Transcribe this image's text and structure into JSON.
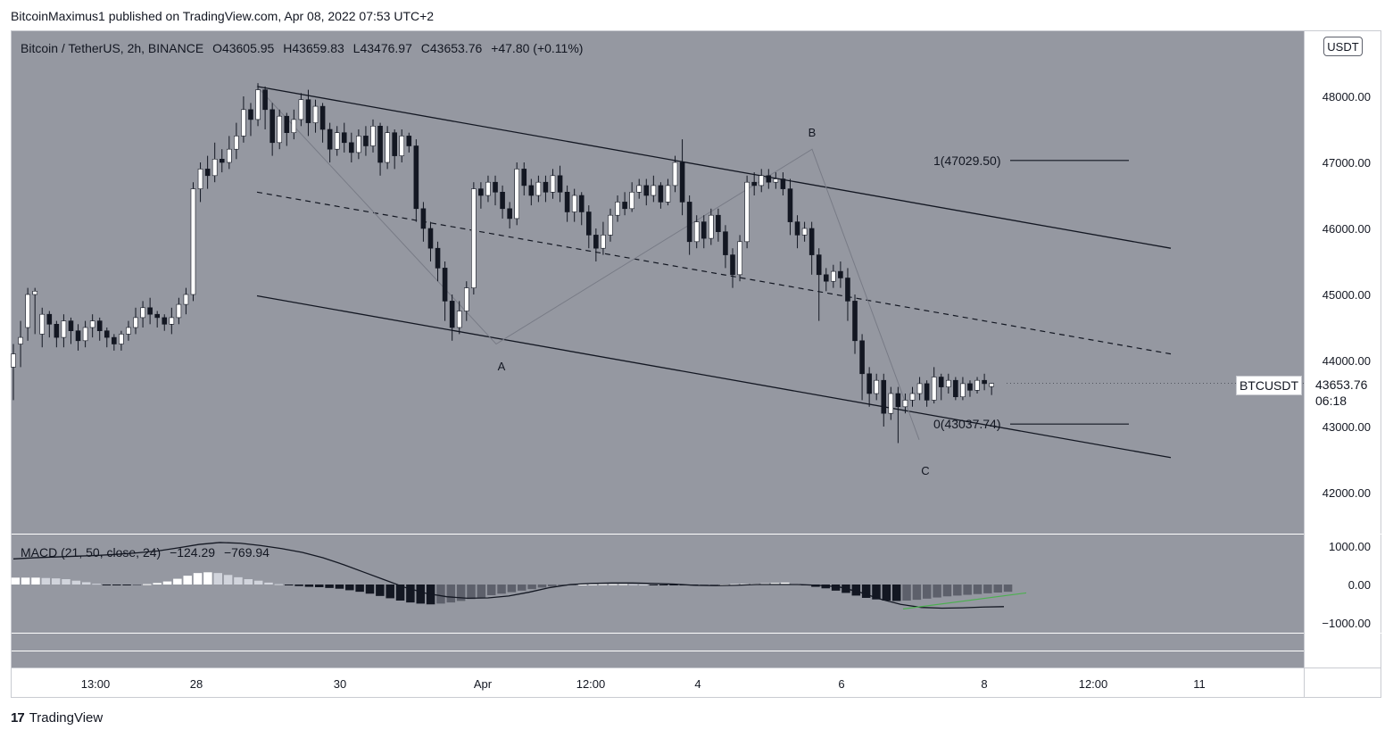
{
  "header": {
    "published": "BitcoinMaximus1 published on TradingView.com, Apr 08, 2022 07:53 UTC+2"
  },
  "legend": {
    "symbol": "Bitcoin / TetherUS, 2h, BINANCE",
    "o_label": "O",
    "o": "43605.95",
    "h_label": "H",
    "h": "43659.83",
    "l_label": "L",
    "l": "43476.97",
    "c_label": "C",
    "c": "43653.76",
    "change": "+47.80 (+0.11%)"
  },
  "macd_legend": {
    "name": "MACD (21, 50, close, 24)",
    "v1": "−124.29",
    "v2": "−769.94"
  },
  "currency_badge": "USDT",
  "symbol_tag": "BTCUSDT",
  "last_price": "43653.76",
  "countdown": "06:18",
  "footer": {
    "logo": "17",
    "brand": "TradingView"
  },
  "colors": {
    "plot_bg": "#9598a1",
    "up": "#ffffff",
    "down": "#131722",
    "line": "#131722",
    "macd_trend": "#4caf50"
  },
  "chart_data": {
    "type": "candlestick",
    "interval": "2h",
    "y_axis": {
      "labels": [
        "48000.00",
        "47000.00",
        "46000.00",
        "45000.00",
        "44000.00",
        "43000.00",
        "42000.00"
      ],
      "range": [
        41300,
        48800
      ]
    },
    "macd_axis": {
      "labels": [
        "1000.00",
        "0.00",
        "−1000.00"
      ],
      "range": [
        -1300,
        1300
      ]
    },
    "x_axis": {
      "labels": [
        "13:00",
        "28",
        "30",
        "Apr",
        "12:00",
        "4",
        "6",
        "8",
        "12:00",
        "11"
      ]
    },
    "wave_labels": [
      {
        "label": "A",
        "value": 44150
      },
      {
        "label": "B",
        "value": 47200
      },
      {
        "label": "C",
        "value": 42650
      }
    ],
    "fib_levels": [
      {
        "label": "1(47029.50)",
        "value": 47029.5
      },
      {
        "label": "0(43037.74)",
        "value": 43037.74
      }
    ],
    "channel": {
      "upper": {
        "start": 48150,
        "end": 45700
      },
      "middle": {
        "start": 46550,
        "end": 44100
      },
      "lower": {
        "start": 44980,
        "end": 42530
      }
    },
    "candles": [
      [
        43900,
        44100,
        43400,
        44250
      ],
      [
        44250,
        44350,
        43900,
        44600
      ],
      [
        44500,
        45000,
        44300,
        45100
      ],
      [
        45000,
        45050,
        44400,
        45100
      ],
      [
        44400,
        44700,
        44200,
        44800
      ],
      [
        44700,
        44550,
        44350,
        44750
      ],
      [
        44550,
        44350,
        44200,
        44600
      ],
      [
        44350,
        44600,
        44200,
        44700
      ],
      [
        44600,
        44450,
        44250,
        44650
      ],
      [
        44450,
        44300,
        44150,
        44550
      ],
      [
        44300,
        44500,
        44200,
        44600
      ],
      [
        44500,
        44600,
        44350,
        44700
      ],
      [
        44600,
        44450,
        44300,
        44650
      ],
      [
        44450,
        44350,
        44200,
        44500
      ],
      [
        44350,
        44250,
        44150,
        44400
      ],
      [
        44250,
        44400,
        44150,
        44450
      ],
      [
        44400,
        44500,
        44300,
        44600
      ],
      [
        44500,
        44650,
        44400,
        44800
      ],
      [
        44650,
        44800,
        44500,
        44900
      ],
      [
        44800,
        44700,
        44550,
        44950
      ],
      [
        44700,
        44650,
        44500,
        44750
      ],
      [
        44650,
        44550,
        44450,
        44700
      ],
      [
        44550,
        44650,
        44400,
        44800
      ],
      [
        44650,
        44850,
        44550,
        44950
      ],
      [
        44850,
        45000,
        44700,
        45100
      ],
      [
        45000,
        46600,
        44900,
        46700
      ],
      [
        46600,
        46900,
        46400,
        47000
      ],
      [
        46900,
        46800,
        46600,
        47100
      ],
      [
        46800,
        47050,
        46700,
        47300
      ],
      [
        47050,
        47000,
        46850,
        47200
      ],
      [
        47000,
        47200,
        46900,
        47400
      ],
      [
        47200,
        47400,
        47050,
        47600
      ],
      [
        47400,
        47800,
        47300,
        48000
      ],
      [
        47800,
        47650,
        47400,
        47900
      ],
      [
        47650,
        48100,
        47550,
        48200
      ],
      [
        48100,
        47800,
        47500,
        48150
      ],
      [
        47800,
        47300,
        47100,
        47900
      ],
      [
        47300,
        47700,
        47200,
        47800
      ],
      [
        47700,
        47450,
        47250,
        47750
      ],
      [
        47450,
        47650,
        47350,
        47800
      ],
      [
        47650,
        47950,
        47550,
        48050
      ],
      [
        47950,
        47600,
        47400,
        48100
      ],
      [
        47600,
        47850,
        47450,
        47950
      ],
      [
        47850,
        47500,
        47300,
        47900
      ],
      [
        47500,
        47200,
        47000,
        47600
      ],
      [
        47200,
        47450,
        47100,
        47550
      ],
      [
        47450,
        47300,
        47150,
        47600
      ],
      [
        47300,
        47150,
        47000,
        47450
      ],
      [
        47150,
        47400,
        47050,
        47500
      ],
      [
        47400,
        47250,
        47100,
        47550
      ],
      [
        47250,
        47550,
        47150,
        47650
      ],
      [
        47550,
        47000,
        46800,
        47600
      ],
      [
        47000,
        47450,
        46900,
        47550
      ],
      [
        47450,
        47100,
        46900,
        47500
      ],
      [
        47100,
        47400,
        47000,
        47500
      ],
      [
        47400,
        47250,
        47150,
        47450
      ],
      [
        47250,
        46300,
        46100,
        47350
      ],
      [
        46300,
        46000,
        45800,
        46400
      ],
      [
        46000,
        45700,
        45500,
        46100
      ],
      [
        45700,
        45400,
        45200,
        45800
      ],
      [
        45400,
        44900,
        44600,
        45500
      ],
      [
        44900,
        44500,
        44300,
        45000
      ],
      [
        44500,
        44750,
        44400,
        44900
      ],
      [
        44750,
        45100,
        44600,
        45200
      ],
      [
        45100,
        46600,
        45000,
        46700
      ],
      [
        46600,
        46500,
        46300,
        46700
      ],
      [
        46500,
        46700,
        46400,
        46800
      ],
      [
        46700,
        46550,
        46350,
        46800
      ],
      [
        46550,
        46300,
        46150,
        46650
      ],
      [
        46300,
        46150,
        46000,
        46400
      ],
      [
        46150,
        46900,
        46050,
        47000
      ],
      [
        46900,
        46650,
        46500,
        47000
      ],
      [
        46650,
        46500,
        46350,
        46750
      ],
      [
        46500,
        46700,
        46400,
        46800
      ],
      [
        46700,
        46550,
        46400,
        46800
      ],
      [
        46550,
        46800,
        46450,
        46900
      ],
      [
        46800,
        46550,
        46400,
        46950
      ],
      [
        46550,
        46250,
        46100,
        46650
      ],
      [
        46250,
        46500,
        46100,
        46600
      ],
      [
        46500,
        46250,
        46050,
        46550
      ],
      [
        46250,
        45900,
        45700,
        46350
      ],
      [
        45900,
        45700,
        45500,
        46000
      ],
      [
        45700,
        45900,
        45600,
        46100
      ],
      [
        45900,
        46200,
        45800,
        46300
      ],
      [
        46200,
        46400,
        46100,
        46500
      ],
      [
        46400,
        46300,
        46200,
        46550
      ],
      [
        46300,
        46550,
        46250,
        46700
      ],
      [
        46550,
        46650,
        46450,
        46750
      ],
      [
        46650,
        46500,
        46350,
        46750
      ],
      [
        46500,
        46650,
        46400,
        46800
      ],
      [
        46650,
        46400,
        46300,
        46700
      ],
      [
        46400,
        46650,
        46350,
        46750
      ],
      [
        46650,
        47000,
        46550,
        47100
      ],
      [
        47000,
        46400,
        46200,
        47350
      ],
      [
        46400,
        45800,
        45600,
        46500
      ],
      [
        45800,
        46100,
        45700,
        46200
      ],
      [
        46100,
        45850,
        45700,
        46200
      ],
      [
        45850,
        46200,
        45750,
        46300
      ],
      [
        46200,
        45950,
        45800,
        46300
      ],
      [
        45950,
        45600,
        45400,
        46050
      ],
      [
        45600,
        45300,
        45100,
        45700
      ],
      [
        45300,
        45800,
        45200,
        45900
      ],
      [
        45800,
        46700,
        45700,
        46800
      ],
      [
        46700,
        46650,
        46500,
        46850
      ],
      [
        46650,
        46800,
        46550,
        46900
      ],
      [
        46800,
        46700,
        46600,
        46900
      ],
      [
        46700,
        46750,
        46600,
        46850
      ],
      [
        46750,
        46600,
        46500,
        46850
      ],
      [
        46600,
        46100,
        45900,
        46750
      ],
      [
        46100,
        45900,
        45700,
        46200
      ],
      [
        45900,
        46000,
        45800,
        46100
      ],
      [
        46000,
        45600,
        45300,
        46100
      ],
      [
        45600,
        45300,
        44600,
        45700
      ],
      [
        45300,
        45200,
        45050,
        45400
      ],
      [
        45200,
        45350,
        45100,
        45450
      ],
      [
        45350,
        45250,
        45100,
        45500
      ],
      [
        45250,
        44900,
        44600,
        45400
      ],
      [
        44900,
        44300,
        44100,
        45000
      ],
      [
        44300,
        43800,
        43400,
        44400
      ],
      [
        43800,
        43500,
        43300,
        43900
      ],
      [
        43500,
        43700,
        43400,
        43800
      ],
      [
        43700,
        43200,
        43000,
        43800
      ],
      [
        43200,
        43500,
        43100,
        43600
      ],
      [
        43500,
        43300,
        42750,
        43600
      ],
      [
        43300,
        43400,
        43200,
        43500
      ],
      [
        43400,
        43500,
        43300,
        43600
      ],
      [
        43500,
        43650,
        43400,
        43750
      ],
      [
        43650,
        43400,
        43300,
        43700
      ],
      [
        43400,
        43750,
        43350,
        43900
      ],
      [
        43750,
        43600,
        43400,
        43800
      ],
      [
        43600,
        43700,
        43500,
        43800
      ],
      [
        43700,
        43450,
        43400,
        43750
      ],
      [
        43450,
        43650,
        43400,
        43750
      ],
      [
        43650,
        43550,
        43450,
        43700
      ],
      [
        43550,
        43700,
        43500,
        43750
      ],
      [
        43700,
        43650,
        43550,
        43800
      ],
      [
        43606,
        43654,
        43477,
        43660
      ]
    ],
    "macd": {
      "macd_line": [
        670,
        700,
        720,
        740,
        760,
        790,
        830,
        880,
        960,
        1050,
        1100,
        1080,
        1020,
        940,
        840,
        700,
        520,
        320,
        120,
        -80,
        -230,
        -320,
        -360,
        -350,
        -300,
        -200,
        -80,
        0,
        30,
        40,
        40,
        30,
        10,
        -20,
        -30,
        -20,
        0,
        0,
        0,
        -20,
        -60,
        -200,
        -380,
        -520,
        -600,
        -620,
        -610,
        -590,
        -580
      ],
      "histogram": [
        180,
        180,
        180,
        170,
        160,
        140,
        100,
        60,
        20,
        -10,
        -20,
        -20,
        -10,
        10,
        40,
        80,
        150,
        230,
        300,
        320,
        300,
        250,
        190,
        140,
        100,
        50,
        10,
        -20,
        -40,
        -60,
        -70,
        -90,
        -110,
        -150,
        -190,
        -240,
        -300,
        -360,
        -420,
        -470,
        -500,
        -520,
        -500,
        -470,
        -430,
        -380,
        -340,
        -280,
        -240,
        -200,
        -160,
        -120,
        -80,
        -50,
        -30,
        -10,
        0,
        5,
        10,
        10,
        10,
        5,
        0,
        -5,
        -10,
        -15,
        -20,
        -25,
        -20,
        -10,
        0,
        10,
        15,
        20,
        30,
        40,
        50,
        20,
        -20,
        -60,
        -100,
        -160,
        -220,
        -290,
        -350,
        -390,
        -420,
        -430,
        -420,
        -400,
        -370,
        -340,
        -310,
        -290,
        -270,
        -250,
        -230,
        -210,
        -190
      ]
    }
  }
}
